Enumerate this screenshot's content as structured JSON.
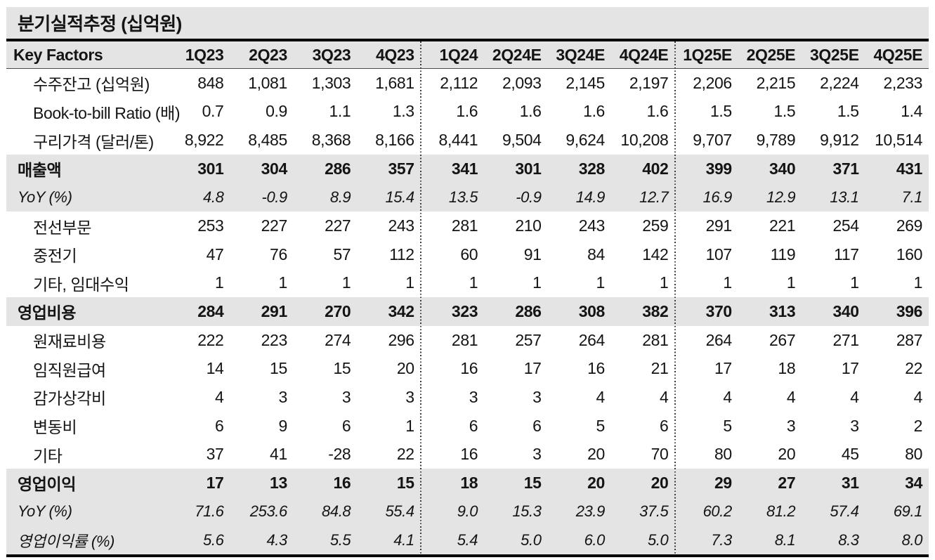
{
  "title": "분기실적추정 (십억원)",
  "header": {
    "label": "Key Factors",
    "columns": [
      "1Q23",
      "2Q23",
      "3Q23",
      "4Q23",
      "1Q24",
      "2Q24E",
      "3Q24E",
      "4Q24E",
      "1Q25E",
      "2Q25E",
      "3Q25E",
      "4Q25E"
    ]
  },
  "rows": [
    {
      "label": "수주잔고 (십억원)",
      "style": "sub",
      "shaded": false,
      "values": [
        "848",
        "1,081",
        "1,303",
        "1,681",
        "2,112",
        "2,093",
        "2,145",
        "2,197",
        "2,206",
        "2,215",
        "2,224",
        "2,233"
      ]
    },
    {
      "label": "Book-to-bill Ratio (배)",
      "style": "sub",
      "shaded": false,
      "values": [
        "0.7",
        "0.9",
        "1.1",
        "1.3",
        "1.6",
        "1.6",
        "1.6",
        "1.6",
        "1.5",
        "1.5",
        "1.5",
        "1.4"
      ]
    },
    {
      "label": "구리가격 (달러/톤)",
      "style": "sub",
      "shaded": false,
      "values": [
        "8,922",
        "8,485",
        "8,368",
        "8,166",
        "8,441",
        "9,504",
        "9,624",
        "10,208",
        "9,707",
        "9,789",
        "9,912",
        "10,514"
      ]
    },
    {
      "label": "매출액",
      "style": "section",
      "shaded": true,
      "values": [
        "301",
        "304",
        "286",
        "357",
        "341",
        "301",
        "328",
        "402",
        "399",
        "340",
        "371",
        "431"
      ]
    },
    {
      "label": "YoY (%)",
      "style": "yoy",
      "shaded": true,
      "values": [
        "4.8",
        "-0.9",
        "8.9",
        "15.4",
        "13.5",
        "-0.9",
        "14.9",
        "12.7",
        "16.9",
        "12.9",
        "13.1",
        "7.1"
      ]
    },
    {
      "label": "전선부문",
      "style": "sub",
      "shaded": false,
      "values": [
        "253",
        "227",
        "227",
        "243",
        "281",
        "210",
        "243",
        "259",
        "291",
        "221",
        "254",
        "269"
      ]
    },
    {
      "label": "중전기",
      "style": "sub",
      "shaded": false,
      "values": [
        "47",
        "76",
        "57",
        "112",
        "60",
        "91",
        "84",
        "142",
        "107",
        "119",
        "117",
        "160"
      ]
    },
    {
      "label": "기타, 임대수익",
      "style": "sub",
      "shaded": false,
      "values": [
        "1",
        "1",
        "1",
        "1",
        "1",
        "1",
        "1",
        "1",
        "1",
        "1",
        "1",
        "1"
      ]
    },
    {
      "label": "영업비용",
      "style": "section",
      "shaded": true,
      "values": [
        "284",
        "291",
        "270",
        "342",
        "323",
        "286",
        "308",
        "382",
        "370",
        "313",
        "340",
        "396"
      ]
    },
    {
      "label": "원재료비용",
      "style": "sub",
      "shaded": false,
      "values": [
        "222",
        "223",
        "274",
        "296",
        "281",
        "257",
        "264",
        "281",
        "264",
        "267",
        "271",
        "287"
      ]
    },
    {
      "label": "임직원급여",
      "style": "sub",
      "shaded": false,
      "values": [
        "14",
        "15",
        "15",
        "20",
        "16",
        "17",
        "16",
        "21",
        "17",
        "18",
        "17",
        "22"
      ]
    },
    {
      "label": "감가상각비",
      "style": "sub",
      "shaded": false,
      "values": [
        "4",
        "3",
        "3",
        "3",
        "3",
        "3",
        "4",
        "4",
        "4",
        "4",
        "4",
        "4"
      ]
    },
    {
      "label": "변동비",
      "style": "sub",
      "shaded": false,
      "values": [
        "6",
        "9",
        "6",
        "1",
        "6",
        "6",
        "5",
        "6",
        "5",
        "3",
        "3",
        "2"
      ]
    },
    {
      "label": "기타",
      "style": "sub",
      "shaded": false,
      "values": [
        "37",
        "41",
        "-28",
        "22",
        "16",
        "3",
        "20",
        "70",
        "80",
        "20",
        "45",
        "80"
      ]
    },
    {
      "label": "영업이익",
      "style": "section",
      "shaded": true,
      "values": [
        "17",
        "13",
        "16",
        "15",
        "18",
        "15",
        "20",
        "20",
        "29",
        "27",
        "31",
        "34"
      ]
    },
    {
      "label": "YoY (%)",
      "style": "yoy",
      "shaded": true,
      "values": [
        "71.6",
        "253.6",
        "84.8",
        "55.4",
        "9.0",
        "15.3",
        "23.9",
        "37.5",
        "60.2",
        "81.2",
        "57.4",
        "69.1"
      ]
    },
    {
      "label": "영업이익률 (%)",
      "style": "yoy",
      "shaded": true,
      "values": [
        "5.6",
        "4.3",
        "5.5",
        "4.1",
        "5.4",
        "5.0",
        "6.0",
        "5.0",
        "7.3",
        "8.1",
        "8.3",
        "8.0"
      ]
    }
  ],
  "colors": {
    "shade": "#e4e4e4",
    "rule": "#000000",
    "text": "#141414"
  },
  "layout_meta": {
    "group_divider_after_columns": [
      "4Q23",
      "4Q24E"
    ]
  }
}
